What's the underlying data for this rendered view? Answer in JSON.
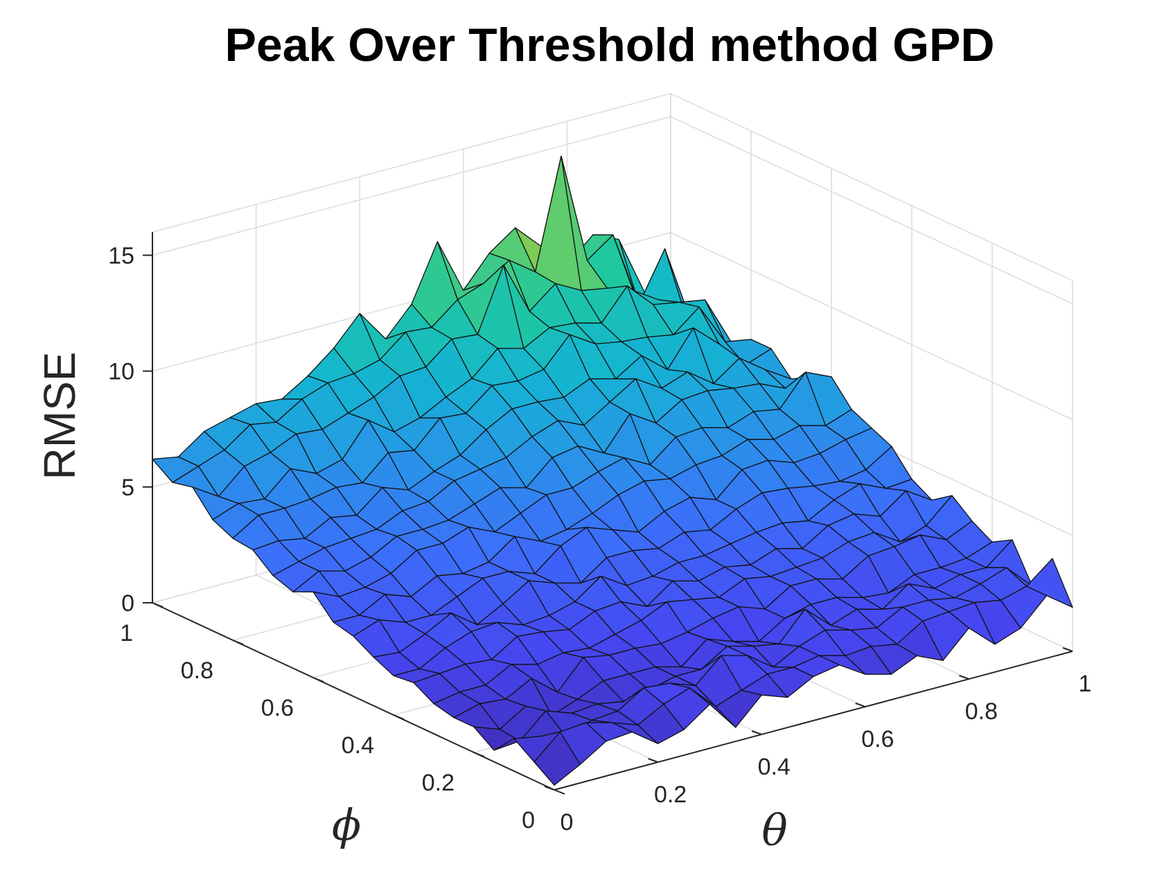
{
  "chart_data": {
    "type": "surface3d",
    "title": "Peak Over Threshold method GPD",
    "xlabel": "θ",
    "ylabel": "ϕ",
    "zlabel": "RMSE",
    "xlim": [
      0,
      1
    ],
    "ylim": [
      0,
      1
    ],
    "zlim": [
      0,
      16
    ],
    "x_ticks": [
      "0",
      "0.2",
      "0.4",
      "0.6",
      "0.8",
      "1"
    ],
    "y_ticks": [
      "0",
      "0.2",
      "0.4",
      "0.6",
      "0.8",
      "1"
    ],
    "z_ticks": [
      "0",
      "5",
      "10",
      "15"
    ],
    "x_tick_values": [
      0,
      0.2,
      0.4,
      0.6,
      0.8,
      1
    ],
    "y_tick_values": [
      0,
      0.2,
      0.4,
      0.6,
      0.8,
      1
    ],
    "z_tick_values": [
      0,
      5,
      10,
      15
    ],
    "grid": true,
    "colormap": "parula",
    "x": [
      0,
      0.05,
      0.1,
      0.15,
      0.2,
      0.25,
      0.3,
      0.35,
      0.4,
      0.45,
      0.5,
      0.55,
      0.6,
      0.65,
      0.7,
      0.75,
      0.8,
      0.85,
      0.9,
      0.95,
      1.0
    ],
    "y": [
      0,
      0.05,
      0.1,
      0.15,
      0.2,
      0.25,
      0.3,
      0.35,
      0.4,
      0.45,
      0.5,
      0.55,
      0.6,
      0.65,
      0.7,
      0.75,
      0.8,
      0.85,
      0.9,
      0.95,
      1.0
    ],
    "z": [
      [
        0.2,
        0.8,
        1.5,
        1.6,
        0.8,
        1.1,
        1.9,
        0.6,
        1.7,
        1.3,
        1.9,
        2.1,
        1.4,
        1.1,
        1.6,
        1.1,
        2.2,
        1.2,
        1.6,
        2.7,
        1.9
      ],
      [
        0.8,
        1.8,
        1.9,
        1.6,
        1.2,
        1.8,
        2.2,
        1.1,
        1.5,
        1.9,
        1.9,
        2.1,
        1.8,
        1.9,
        1.7,
        2.4,
        2.5,
        2.6,
        2.4,
        2.7,
        3.6
      ],
      [
        1.4,
        1.2,
        0.9,
        1.3,
        1.4,
        2.1,
        2.0,
        1.6,
        2.6,
        2.3,
        1.5,
        2.1,
        2.5,
        2.2,
        2.0,
        2.6,
        2.6,
        2.4,
        2.7,
        3.1,
        2.0
      ],
      [
        0.5,
        0.6,
        1.6,
        1.2,
        1.3,
        1.1,
        1.3,
        1.6,
        1.6,
        2.3,
        2.0,
        1.8,
        3.0,
        2.0,
        2.4,
        2.1,
        2.9,
        2.4,
        2.7,
        2.7,
        3.6
      ],
      [
        1.1,
        0.7,
        1.4,
        0.7,
        1.1,
        1.6,
        1.6,
        1.6,
        1.3,
        2.2,
        1.8,
        1.5,
        2.2,
        2.5,
        2.5,
        2.2,
        2.1,
        2.6,
        2.6,
        2.7,
        3.1
      ],
      [
        1.1,
        1.4,
        1.3,
        1.9,
        1.0,
        2.2,
        2.0,
        2.0,
        1.9,
        2.1,
        2.4,
        2.6,
        2.2,
        2.9,
        2.9,
        2.6,
        3.3,
        3.4,
        3.6,
        3.1,
        3.6
      ],
      [
        1.3,
        1.5,
        1.5,
        2.1,
        1.8,
        2.0,
        1.9,
        2.2,
        2.5,
        3.0,
        2.8,
        2.6,
        3.1,
        2.9,
        3.0,
        3.1,
        3.5,
        3.6,
        2.9,
        3.3,
        4.3
      ],
      [
        1.8,
        1.9,
        2.0,
        1.9,
        2.6,
        2.5,
        2.3,
        2.8,
        2.9,
        2.4,
        3.2,
        2.9,
        3.2,
        3.0,
        3.4,
        3.1,
        3.8,
        4.0,
        3.6,
        4.4,
        3.7
      ],
      [
        1.7,
        1.7,
        2.3,
        2.7,
        2.8,
        2.4,
        2.5,
        2.8,
        3.6,
        2.9,
        3.0,
        3.3,
        3.3,
        3.5,
        3.7,
        3.8,
        3.6,
        4.2,
        4.6,
        4.1,
        4.2
      ],
      [
        2.1,
        2.0,
        2.5,
        3.1,
        2.3,
        2.9,
        3.6,
        3.2,
        2.9,
        3.7,
        3.7,
        3.5,
        3.9,
        3.7,
        4.3,
        4.7,
        4.6,
        4.4,
        4.3,
        4.5,
        5.2
      ],
      [
        2.6,
        3.0,
        2.6,
        2.6,
        3.1,
        3.6,
        3.6,
        3.2,
        4.1,
        4.6,
        4.2,
        3.8,
        4.4,
        4.7,
        4.3,
        5.3,
        5.4,
        5.0,
        5.1,
        5.4,
        5.6
      ],
      [
        2.8,
        2.8,
        3.4,
        3.0,
        3.6,
        3.4,
        3.6,
        4.4,
        3.9,
        4.1,
        4.5,
        5.0,
        5.3,
        5.1,
        5.4,
        5.5,
        5.9,
        5.6,
        5.9,
        5.6,
        6.0
      ],
      [
        3.7,
        3.2,
        3.3,
        3.6,
        4.3,
        4.3,
        4.7,
        4.2,
        4.7,
        5.2,
        5.2,
        5.6,
        5.9,
        5.3,
        6.2,
        6.3,
        6.0,
        6.4,
        6.2,
        7.5,
        7.0
      ],
      [
        3.3,
        3.9,
        3.6,
        3.9,
        4.5,
        4.5,
        4.6,
        5.0,
        5.4,
        5.1,
        6.1,
        6.3,
        5.7,
        7.1,
        6.4,
        7.1,
        7.2,
        7.0,
        6.9,
        6.4,
        6.6
      ],
      [
        3.6,
        3.9,
        4.2,
        4.3,
        4.4,
        4.9,
        5.0,
        5.6,
        5.8,
        6.0,
        6.6,
        7.0,
        6.5,
        7.2,
        7.9,
        7.2,
        7.6,
        6.8,
        7.6,
        6.8,
        6.1
      ],
      [
        4.3,
        4.4,
        4.2,
        4.8,
        4.6,
        5.5,
        5.1,
        5.6,
        6.0,
        6.8,
        7.4,
        7.4,
        7.3,
        7.8,
        7.5,
        8.2,
        7.3,
        8.8,
        7.8,
        6.6,
        7.0
      ],
      [
        4.4,
        5.1,
        5.1,
        5.2,
        5.4,
        5.3,
        6.3,
        6.1,
        7.2,
        7.1,
        8.0,
        7.9,
        8.1,
        9.3,
        8.6,
        8.4,
        8.3,
        8.1,
        9.0,
        7.2,
        7.0
      ],
      [
        4.8,
        5.2,
        5.1,
        6.1,
        5.6,
        5.9,
        7.3,
        6.5,
        6.8,
        7.4,
        7.9,
        8.9,
        8.6,
        9.2,
        9.1,
        8.8,
        10.1,
        9.0,
        8.8,
        8.6,
        6.5
      ],
      [
        5.8,
        5.1,
        6.1,
        6.4,
        6.9,
        6.8,
        7.2,
        7.6,
        8.2,
        8.3,
        9.2,
        9.1,
        11.8,
        9.5,
        10.4,
        9.8,
        9.6,
        9.2,
        8.5,
        7.6,
        7.1
      ],
      [
        5.6,
        6.0,
        6.4,
        7.2,
        7.0,
        7.7,
        8.1,
        8.2,
        8.5,
        9.4,
        9.3,
        10.2,
        10.6,
        11.3,
        10.5,
        15.2,
        10.4,
        11.2,
        7.9,
        10.0,
        6.6
      ],
      [
        6.2,
        6.0,
        6.8,
        7.1,
        7.4,
        7.3,
        8.0,
        8.9,
        10.1,
        8.7,
        9.9,
        12.3,
        9.9,
        11.2,
        12.0,
        10.9,
        9.8,
        10.8,
        10.3,
        7.7,
        8.1
      ]
    ]
  }
}
